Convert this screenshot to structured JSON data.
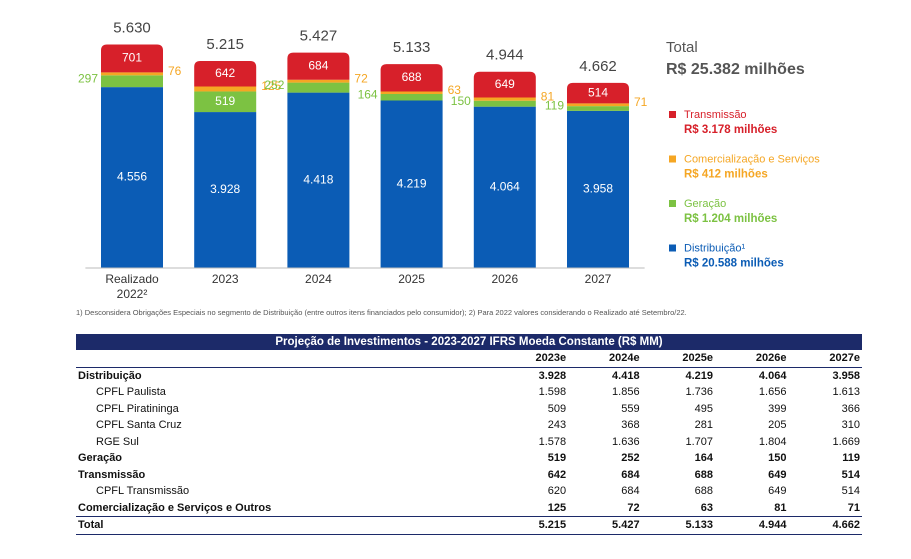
{
  "chart_data": {
    "type": "stacked_bar",
    "categories": [
      "Realizado 2022²",
      "2023",
      "2024",
      "2025",
      "2026",
      "2027"
    ],
    "series": [
      {
        "name": "Distribuição¹",
        "color": "#0b5cb5",
        "total_label": "R$ 20.588 milhões",
        "values": [
          4556,
          3928,
          4418,
          4219,
          4064,
          3958
        ],
        "value_labels": [
          "4.556",
          "3.928",
          "4.418",
          "4.219",
          "4.064",
          "3.958"
        ]
      },
      {
        "name": "Geração",
        "color": "#7cc242",
        "total_label": "R$ 1.204 milhões",
        "values": [
          297,
          519,
          252,
          164,
          150,
          119
        ],
        "value_labels": [
          "297",
          "519",
          "252",
          "164",
          "150",
          "119"
        ]
      },
      {
        "name": "Comercialização e Serviços",
        "color": "#f5a623",
        "total_label": "R$ 412 milhões",
        "values": [
          76,
          125,
          72,
          63,
          81,
          71
        ],
        "value_labels": [
          "76",
          "125",
          "72",
          "63",
          "81",
          "71"
        ]
      },
      {
        "name": "Transmissão",
        "color": "#d7202a",
        "total_label": "R$ 3.178 milhões",
        "values": [
          701,
          642,
          684,
          688,
          649,
          514
        ],
        "value_labels": [
          "701",
          "642",
          "684",
          "688",
          "649",
          "514"
        ]
      }
    ],
    "totals": {
      "values": [
        5630,
        5215,
        5427,
        5133,
        4944,
        4662
      ],
      "value_labels": [
        "5.630",
        "5.215",
        "5.427",
        "5.133",
        "4.944",
        "4.662"
      ]
    },
    "total_title": "Total",
    "total_value": "R$ 25.382 milhões",
    "footnote": "1) Desconsidera Obrigações Especiais no segmento de Distribuição (entre outros itens financiados pelo consumidor); 2) Para 2022 valores considerando o Realizado até Setembro/22."
  },
  "table": {
    "title": "Projeção de Investimentos - 2023-2027 IFRS Moeda Constante (R$ MM)",
    "columns": [
      "2023e",
      "2024e",
      "2025e",
      "2026e",
      "2027e"
    ],
    "groups": [
      {
        "label": "Distribuição",
        "values": [
          "3.928",
          "4.418",
          "4.219",
          "4.064",
          "3.958"
        ],
        "items": [
          {
            "label": "CPFL Paulista",
            "values": [
              "1.598",
              "1.856",
              "1.736",
              "1.656",
              "1.613"
            ]
          },
          {
            "label": "CPFL Piratininga",
            "values": [
              "509",
              "559",
              "495",
              "399",
              "366"
            ]
          },
          {
            "label": "CPFL Santa Cruz",
            "values": [
              "243",
              "368",
              "281",
              "205",
              "310"
            ]
          },
          {
            "label": "RGE Sul",
            "values": [
              "1.578",
              "1.636",
              "1.707",
              "1.804",
              "1.669"
            ]
          }
        ]
      },
      {
        "label": "Geração",
        "values": [
          "519",
          "252",
          "164",
          "150",
          "119"
        ],
        "items": []
      },
      {
        "label": "Transmissão",
        "values": [
          "642",
          "684",
          "688",
          "649",
          "514"
        ],
        "items": [
          {
            "label": "CPFL Transmissão",
            "values": [
              "620",
              "684",
              "688",
              "649",
              "514"
            ]
          }
        ]
      },
      {
        "label": "Comercialização e Serviços e Outros",
        "values": [
          "125",
          "72",
          "63",
          "81",
          "71"
        ],
        "items": []
      }
    ],
    "total": {
      "label": "Total",
      "values": [
        "5.215",
        "5.427",
        "5.133",
        "4.944",
        "4.662"
      ]
    }
  }
}
